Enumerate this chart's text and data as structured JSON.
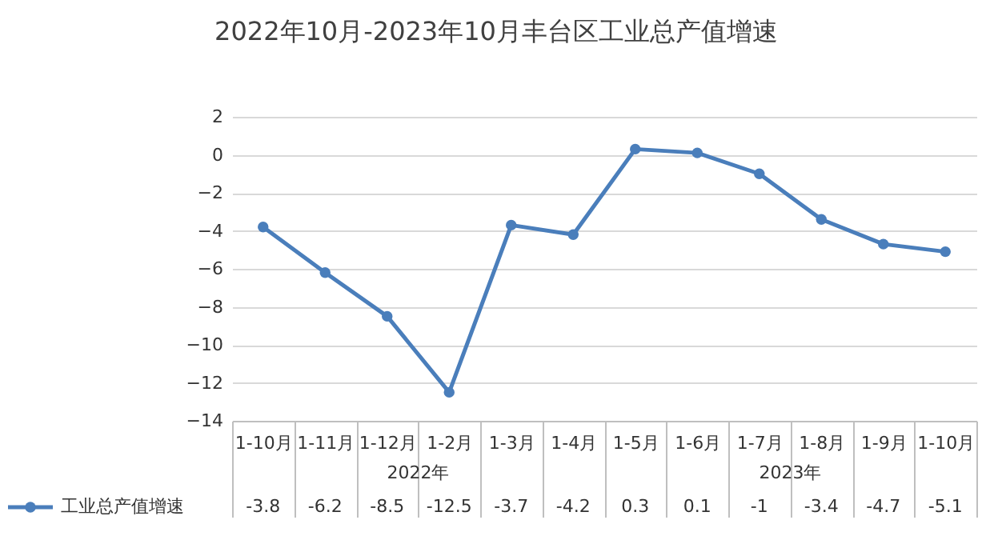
{
  "chart_data": {
    "type": "line",
    "title": "2022年10月-2023年10月丰台区工业总产值增速",
    "categories": [
      "1-10月",
      "1-11月",
      "1-12月",
      "1-2月",
      "1-3月",
      "1-4月",
      "1-5月",
      "1-6月",
      "1-7月",
      "1-8月",
      "1-9月",
      "1-10月"
    ],
    "series": [
      {
        "name": "工业总产值增速",
        "color": "#4a7ebb",
        "values": [
          -3.8,
          -6.2,
          -8.5,
          -12.5,
          -3.7,
          -4.2,
          0.3,
          0.1,
          -1,
          -3.4,
          -4.7,
          -5.1
        ]
      }
    ],
    "ylim": [
      -14,
      2
    ],
    "yticks": [
      -14,
      -12,
      -10,
      -8,
      -6,
      -4,
      -2,
      0,
      2
    ],
    "grid": "y",
    "marker": "circle",
    "legend": "bottom",
    "data_labels": true,
    "annotations": [
      "2022年",
      "2023年"
    ]
  }
}
